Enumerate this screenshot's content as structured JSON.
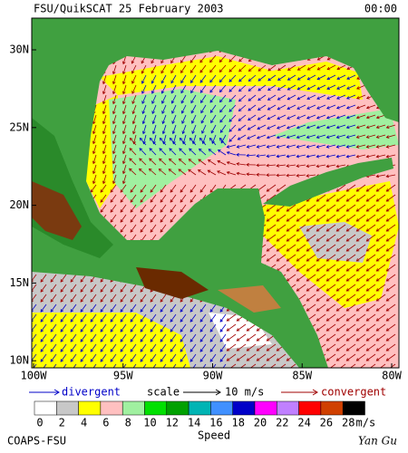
{
  "header": {
    "title": "FSU/QuikSCAT 25 February 2003",
    "time": "00:00"
  },
  "map": {
    "lat_labels": [
      "30N",
      "25N",
      "20N",
      "15N",
      "10N"
    ],
    "lon_labels": [
      "100W",
      "95W",
      "90W",
      "85W",
      "80W"
    ]
  },
  "legend": {
    "divergent": "divergent",
    "scale": "scale",
    "scale_value": "10 m/s",
    "convergent": "convergent",
    "speed_ticks": [
      0,
      2,
      4,
      6,
      8,
      10,
      12,
      14,
      16,
      18,
      20,
      22,
      24,
      26,
      28
    ],
    "speed_colors": [
      "#ffffff",
      "#c8c8c8",
      "#ffff00",
      "#ffc0c0",
      "#a0f0a0",
      "#00e000",
      "#00a000",
      "#00b4b4",
      "#4090ff",
      "#0000c8",
      "#ff00ff",
      "#c080ff",
      "#ff0000",
      "#d04000",
      "#000000"
    ],
    "unit": "m/s",
    "speed_label": "Speed"
  },
  "footer": {
    "credit": "COAPS-FSU",
    "author": "Yan Gu"
  }
}
